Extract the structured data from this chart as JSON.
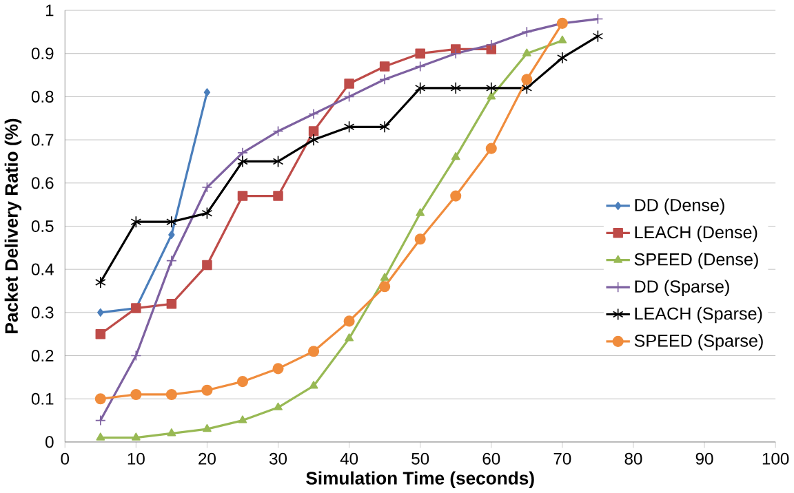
{
  "chart_data": {
    "type": "line",
    "xlabel": "Simulation Time (seconds)",
    "ylabel": "Packet Delivery Ratio (%)",
    "xlim": [
      0,
      100
    ],
    "xticks": [
      0,
      10,
      20,
      30,
      40,
      50,
      60,
      70,
      80,
      90,
      100
    ],
    "ylim": [
      0,
      1
    ],
    "yticks": [
      0,
      0.1,
      0.2,
      0.3,
      0.4,
      0.5,
      0.6,
      0.7,
      0.8,
      0.9,
      1
    ],
    "grid": "y",
    "legend": "right",
    "series": [
      {
        "name": "DD (Dense)",
        "color": "#4a7ebb",
        "marker": "diamond",
        "x": [
          5,
          10,
          15,
          20
        ],
        "values": [
          0.3,
          0.31,
          0.48,
          0.81
        ]
      },
      {
        "name": "LEACH (Dense)",
        "color": "#be4b48",
        "marker": "square",
        "x": [
          5,
          10,
          15,
          20,
          25,
          30,
          35,
          40,
          45,
          50,
          55,
          60
        ],
        "values": [
          0.25,
          0.31,
          0.32,
          0.41,
          0.57,
          0.57,
          0.72,
          0.83,
          0.87,
          0.9,
          0.91,
          0.91
        ]
      },
      {
        "name": "SPEED (Dense)",
        "color": "#98b954",
        "marker": "triangle",
        "x": [
          5,
          10,
          15,
          20,
          25,
          30,
          35,
          40,
          45,
          50,
          55,
          60,
          65,
          70
        ],
        "values": [
          0.01,
          0.01,
          0.02,
          0.03,
          0.05,
          0.08,
          0.13,
          0.24,
          0.38,
          0.53,
          0.66,
          0.8,
          0.9,
          0.93
        ]
      },
      {
        "name": "DD (Sparse)",
        "color": "#7d60a0",
        "marker": "plus",
        "x": [
          5,
          10,
          15,
          20,
          25,
          30,
          35,
          40,
          45,
          50,
          55,
          60,
          65,
          70,
          75
        ],
        "values": [
          0.05,
          0.2,
          0.42,
          0.59,
          0.67,
          0.72,
          0.76,
          0.8,
          0.84,
          0.87,
          0.9,
          0.92,
          0.95,
          0.97,
          0.98
        ]
      },
      {
        "name": "LEACH (Sparse)",
        "color": "#000000",
        "marker": "cross",
        "x": [
          5,
          10,
          15,
          20,
          25,
          30,
          35,
          40,
          45,
          50,
          55,
          60,
          65,
          70,
          75
        ],
        "values": [
          0.37,
          0.51,
          0.51,
          0.53,
          0.65,
          0.65,
          0.7,
          0.73,
          0.73,
          0.82,
          0.82,
          0.82,
          0.82,
          0.89,
          0.94
        ]
      },
      {
        "name": "SPEED (Sparse)",
        "color": "#f08c3c",
        "marker": "circle",
        "x": [
          5,
          10,
          15,
          20,
          25,
          30,
          35,
          40,
          45,
          50,
          55,
          60,
          65,
          70
        ],
        "values": [
          0.1,
          0.11,
          0.11,
          0.12,
          0.14,
          0.17,
          0.21,
          0.28,
          0.36,
          0.47,
          0.57,
          0.68,
          0.84,
          0.97
        ]
      }
    ]
  }
}
